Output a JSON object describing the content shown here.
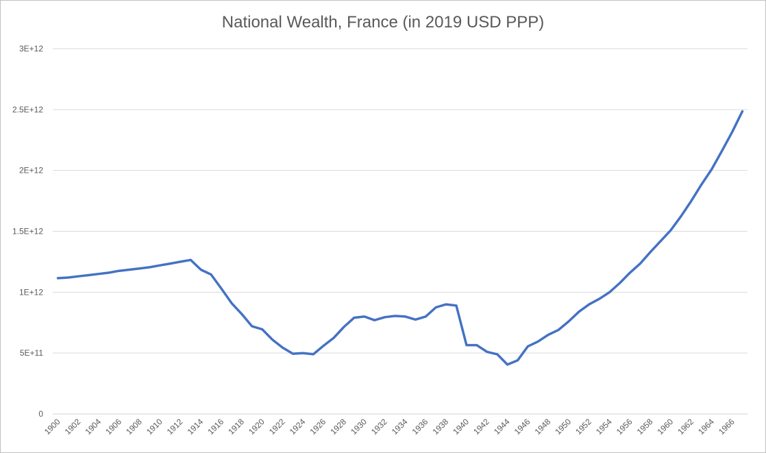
{
  "chart_data": {
    "type": "line",
    "title": "National Wealth, France (in 2019 USD PPP)",
    "xlabel": "",
    "ylabel": "",
    "ylim": [
      0,
      3000000000000
    ],
    "yticks": [
      0,
      500000000000,
      1000000000000,
      1500000000000,
      2000000000000,
      2500000000000,
      3000000000000
    ],
    "ytick_labels": [
      "0",
      "5E+11",
      "1E+12",
      "1.5E+12",
      "2E+12",
      "2.5E+12",
      "3E+12"
    ],
    "xtick_labels": [
      "1900",
      "1902",
      "1904",
      "1906",
      "1908",
      "1910",
      "1912",
      "1914",
      "1916",
      "1918",
      "1920",
      "1922",
      "1924",
      "1926",
      "1928",
      "1930",
      "1932",
      "1934",
      "1936",
      "1938",
      "1940",
      "1942",
      "1944",
      "1946",
      "1948",
      "1950",
      "1952",
      "1954",
      "1956",
      "1958",
      "1960",
      "1962",
      "1964",
      "1966"
    ],
    "grid": true,
    "line_color": "#4472c4",
    "series": [
      {
        "x": [
          1900,
          1901,
          1902,
          1903,
          1904,
          1905,
          1906,
          1907,
          1908,
          1909,
          1910,
          1911,
          1912,
          1913,
          1914,
          1915,
          1916,
          1917,
          1918,
          1919,
          1920,
          1921,
          1922,
          1923,
          1924,
          1925,
          1926,
          1927,
          1928,
          1929,
          1930,
          1931,
          1932,
          1933,
          1934,
          1935,
          1936,
          1937,
          1938,
          1939,
          1940,
          1941,
          1942,
          1943,
          1944,
          1945,
          1946,
          1947,
          1948,
          1949,
          1950,
          1951,
          1952,
          1953,
          1954,
          1955,
          1956,
          1957,
          1958,
          1959,
          1960,
          1961,
          1962,
          1963,
          1964,
          1965,
          1966,
          1967
        ],
        "values": [
          1115000000000,
          1120000000000,
          1130000000000,
          1140000000000,
          1150000000000,
          1160000000000,
          1175000000000,
          1185000000000,
          1195000000000,
          1205000000000,
          1220000000000,
          1235000000000,
          1250000000000,
          1265000000000,
          1185000000000,
          1145000000000,
          1030000000000,
          910000000000,
          820000000000,
          720000000000,
          695000000000,
          610000000000,
          545000000000,
          495000000000,
          500000000000,
          490000000000,
          560000000000,
          625000000000,
          715000000000,
          790000000000,
          800000000000,
          770000000000,
          795000000000,
          805000000000,
          800000000000,
          775000000000,
          800000000000,
          875000000000,
          900000000000,
          890000000000,
          565000000000,
          565000000000,
          510000000000,
          490000000000,
          405000000000,
          440000000000,
          555000000000,
          595000000000,
          650000000000,
          690000000000,
          760000000000,
          840000000000,
          900000000000,
          945000000000,
          1000000000000,
          1075000000000,
          1160000000000,
          1235000000000,
          1330000000000,
          1420000000000,
          1510000000000,
          1625000000000,
          1750000000000,
          1885000000000,
          2010000000000,
          2160000000000,
          2315000000000,
          2485000000000
        ]
      }
    ]
  }
}
